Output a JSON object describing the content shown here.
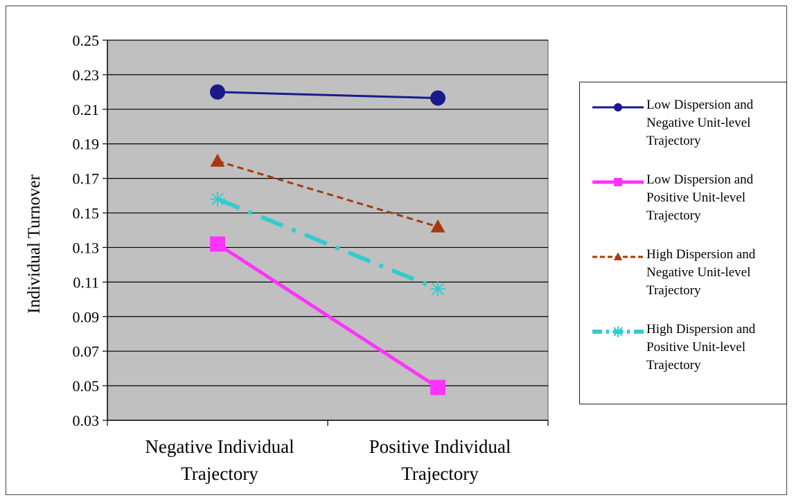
{
  "chart_data": {
    "type": "line",
    "title": "",
    "xlabel": "",
    "ylabel": "Individual Turnover",
    "categories": [
      "Negative Individual Trajectory",
      "Positive Individual Trajectory"
    ],
    "category_lines": [
      [
        "Negative Individual",
        "Trajectory"
      ],
      [
        "Positive Individual",
        "Trajectory"
      ]
    ],
    "ylim": [
      0.03,
      0.25
    ],
    "yticks": [
      "0.03",
      "0.05",
      "0.07",
      "0.09",
      "0.11",
      "0.13",
      "0.15",
      "0.17",
      "0.19",
      "0.21",
      "0.23",
      "0.25"
    ],
    "grid": true,
    "legend_position": "right",
    "plot_background": "#c0c0c0",
    "series": [
      {
        "name": "Low Dispersion and Negative Unit-level Trajectory",
        "legend_lines": [
          "Low Dispersion and",
          "Negative Unit-level",
          "Trajectory"
        ],
        "values": [
          0.22,
          0.2165
        ],
        "color": "#1a1a8c",
        "marker": "circle",
        "dash": "solid"
      },
      {
        "name": "Low Dispersion and Positive Unit-level Trajectory",
        "legend_lines": [
          "Low Dispersion and",
          "Positive Unit-level",
          "Trajectory"
        ],
        "values": [
          0.132,
          0.049
        ],
        "color": "#ff33ff",
        "marker": "square",
        "dash": "solid"
      },
      {
        "name": "High Dispersion and Negative Unit-level Trajectory",
        "legend_lines": [
          "High Dispersion and",
          "Negative Unit-level",
          "Trajectory"
        ],
        "values": [
          0.18,
          0.142
        ],
        "color": "#a63a0f",
        "marker": "triangle",
        "dash": "dashed"
      },
      {
        "name": "High Dispersion and Positive Unit-level Trajectory",
        "legend_lines": [
          "High Dispersion and",
          "Positive Unit-level",
          "Trajectory"
        ],
        "values": [
          0.158,
          0.106
        ],
        "color": "#33cccc",
        "marker": "asterisk",
        "dash": "dash-dot"
      }
    ]
  }
}
